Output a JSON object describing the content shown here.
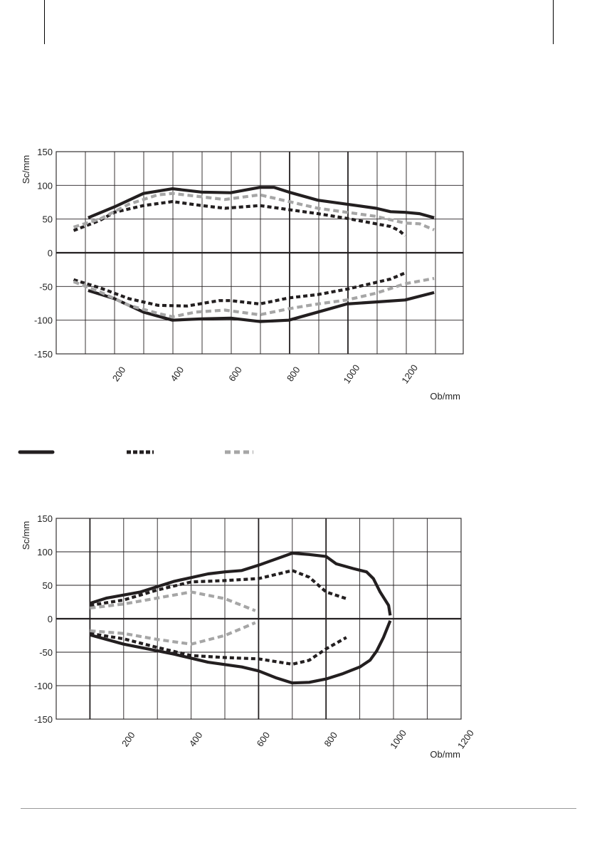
{
  "legend": [
    {
      "style": "solid",
      "color": "#231f20"
    },
    {
      "style": "dotted",
      "color": "#231f20"
    },
    {
      "style": "dashed",
      "color": "#a6a6a6"
    }
  ],
  "chart_data": [
    {
      "type": "line",
      "xlabel": "Ob/mm",
      "ylabel": "Sc/mm",
      "xlim": [
        0,
        1400
      ],
      "ylim": [
        -150,
        150
      ],
      "xticks": [
        200,
        400,
        600,
        800,
        1000,
        1200
      ],
      "yticks": [
        150,
        100,
        50,
        0,
        -50,
        -100,
        -150
      ],
      "grid": true,
      "series": [
        {
          "style": "solid",
          "color": "#231f20",
          "points": [
            [
              110,
              52
            ],
            [
              200,
              68
            ],
            [
              300,
              88
            ],
            [
              400,
              95
            ],
            [
              500,
              90
            ],
            [
              600,
              89
            ],
            [
              700,
              97
            ],
            [
              750,
              97
            ],
            [
              800,
              90
            ],
            [
              900,
              78
            ],
            [
              1000,
              72
            ],
            [
              1100,
              66
            ],
            [
              1150,
              61
            ],
            [
              1200,
              60
            ],
            [
              1250,
              58
            ],
            [
              1300,
              52
            ]
          ]
        },
        {
          "style": "dotted",
          "color": "#231f20",
          "points": [
            [
              60,
              33
            ],
            [
              150,
              48
            ],
            [
              200,
              60
            ],
            [
              300,
              70
            ],
            [
              400,
              76
            ],
            [
              500,
              70
            ],
            [
              580,
              66
            ],
            [
              700,
              70
            ],
            [
              800,
              64
            ],
            [
              900,
              58
            ],
            [
              1000,
              51
            ],
            [
              1100,
              43
            ],
            [
              1150,
              39
            ],
            [
              1180,
              33
            ],
            [
              1200,
              25
            ]
          ]
        },
        {
          "style": "dashed",
          "color": "#a6a6a6",
          "points": [
            [
              60,
              38
            ],
            [
              150,
              50
            ],
            [
              250,
              72
            ],
            [
              350,
              86
            ],
            [
              400,
              88
            ],
            [
              480,
              84
            ],
            [
              580,
              79
            ],
            [
              700,
              86
            ],
            [
              800,
              76
            ],
            [
              900,
              66
            ],
            [
              1000,
              60
            ],
            [
              1100,
              54
            ],
            [
              1200,
              44
            ],
            [
              1250,
              43
            ],
            [
              1300,
              34
            ]
          ]
        },
        {
          "style": "solid",
          "color": "#231f20",
          "points": [
            [
              110,
              -56
            ],
            [
              200,
              -68
            ],
            [
              300,
              -88
            ],
            [
              400,
              -100
            ],
            [
              500,
              -98
            ],
            [
              600,
              -97
            ],
            [
              700,
              -102
            ],
            [
              800,
              -100
            ],
            [
              900,
              -88
            ],
            [
              1000,
              -76
            ],
            [
              1100,
              -73
            ],
            [
              1200,
              -70
            ],
            [
              1300,
              -59
            ]
          ]
        },
        {
          "style": "dotted",
          "color": "#231f20",
          "points": [
            [
              60,
              -40
            ],
            [
              150,
              -52
            ],
            [
              250,
              -68
            ],
            [
              350,
              -78
            ],
            [
              450,
              -79
            ],
            [
              560,
              -71
            ],
            [
              600,
              -71
            ],
            [
              700,
              -76
            ],
            [
              800,
              -67
            ],
            [
              900,
              -62
            ],
            [
              1000,
              -54
            ],
            [
              1100,
              -44
            ],
            [
              1150,
              -39
            ],
            [
              1200,
              -30
            ]
          ]
        },
        {
          "style": "dashed",
          "color": "#a6a6a6",
          "points": [
            [
              60,
              -43
            ],
            [
              150,
              -58
            ],
            [
              250,
              -78
            ],
            [
              350,
              -90
            ],
            [
              400,
              -95
            ],
            [
              480,
              -88
            ],
            [
              580,
              -85
            ],
            [
              700,
              -92
            ],
            [
              800,
              -83
            ],
            [
              900,
              -76
            ],
            [
              1000,
              -70
            ],
            [
              1100,
              -60
            ],
            [
              1150,
              -53
            ],
            [
              1200,
              -46
            ],
            [
              1300,
              -38
            ]
          ]
        }
      ]
    },
    {
      "type": "line",
      "xlabel": "Ob/mm",
      "ylabel": "Sc/mm",
      "xlim": [
        0,
        1200
      ],
      "ylim": [
        -150,
        150
      ],
      "xticks": [
        200,
        400,
        600,
        800,
        1000,
        1200
      ],
      "yticks": [
        150,
        100,
        50,
        0,
        -50,
        -100,
        -150
      ],
      "grid": true,
      "series": [
        {
          "style": "solid",
          "color": "#231f20",
          "points": [
            [
              100,
              23
            ],
            [
              150,
              31
            ],
            [
              250,
              40
            ],
            [
              300,
              48
            ],
            [
              350,
              56
            ],
            [
              450,
              67
            ],
            [
              500,
              70
            ],
            [
              550,
              72
            ],
            [
              600,
              80
            ],
            [
              700,
              98
            ],
            [
              750,
              96
            ],
            [
              800,
              93
            ],
            [
              830,
              82
            ],
            [
              880,
              75
            ],
            [
              920,
              70
            ],
            [
              940,
              60
            ],
            [
              960,
              40
            ],
            [
              985,
              20
            ],
            [
              990,
              5
            ]
          ]
        },
        {
          "style": "dotted",
          "color": "#231f20",
          "points": [
            [
              100,
              20
            ],
            [
              200,
              28
            ],
            [
              300,
              43
            ],
            [
              400,
              55
            ],
            [
              500,
              57
            ],
            [
              600,
              60
            ],
            [
              700,
              72
            ],
            [
              750,
              62
            ],
            [
              800,
              40
            ],
            [
              860,
              30
            ]
          ]
        },
        {
          "style": "dashed",
          "color": "#a6a6a6",
          "points": [
            [
              100,
              16
            ],
            [
              200,
              22
            ],
            [
              300,
              31
            ],
            [
              400,
              40
            ],
            [
              500,
              30
            ],
            [
              590,
              12
            ]
          ]
        },
        {
          "style": "solid",
          "color": "#231f20",
          "points": [
            [
              100,
              -24
            ],
            [
              200,
              -38
            ],
            [
              300,
              -48
            ],
            [
              350,
              -53
            ],
            [
              450,
              -65
            ],
            [
              550,
              -72
            ],
            [
              600,
              -78
            ],
            [
              650,
              -88
            ],
            [
              700,
              -96
            ],
            [
              750,
              -95
            ],
            [
              800,
              -90
            ],
            [
              850,
              -82
            ],
            [
              900,
              -72
            ],
            [
              930,
              -62
            ],
            [
              950,
              -48
            ],
            [
              970,
              -28
            ],
            [
              990,
              -3
            ]
          ]
        },
        {
          "style": "dotted",
          "color": "#231f20",
          "points": [
            [
              100,
              -22
            ],
            [
              200,
              -30
            ],
            [
              300,
              -43
            ],
            [
              400,
              -55
            ],
            [
              500,
              -58
            ],
            [
              600,
              -60
            ],
            [
              700,
              -68
            ],
            [
              750,
              -62
            ],
            [
              800,
              -45
            ],
            [
              860,
              -28
            ]
          ]
        },
        {
          "style": "dashed",
          "color": "#a6a6a6",
          "points": [
            [
              100,
              -18
            ],
            [
              200,
              -22
            ],
            [
              300,
              -31
            ],
            [
              400,
              -38
            ],
            [
              500,
              -25
            ],
            [
              590,
              -6
            ]
          ]
        }
      ]
    }
  ]
}
